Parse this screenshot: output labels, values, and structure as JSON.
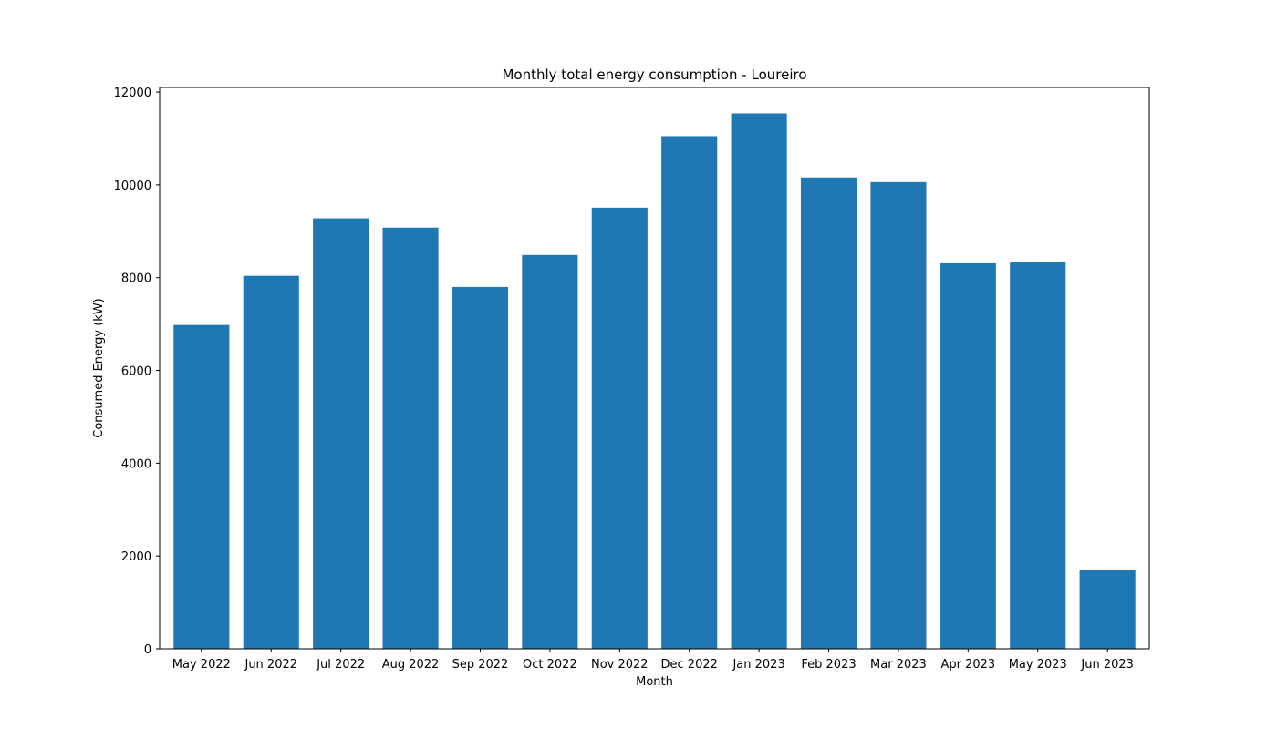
{
  "chart_data": {
    "type": "bar",
    "title": "Monthly total energy consumption - Loureiro",
    "xlabel": "Month",
    "ylabel": "Consumed Energy (kW)",
    "categories": [
      "May 2022",
      "Jun 2022",
      "Jul 2022",
      "Aug 2022",
      "Sep 2022",
      "Oct 2022",
      "Nov 2022",
      "Dec 2022",
      "Jan 2023",
      "Feb 2023",
      "Mar 2023",
      "Apr 2023",
      "May 2023",
      "Jun 2023"
    ],
    "values": [
      6980,
      8040,
      9280,
      9080,
      7800,
      8490,
      9510,
      11050,
      11540,
      10160,
      10060,
      8310,
      8330,
      1700
    ],
    "ylim": [
      0,
      12100
    ],
    "yticks": [
      0,
      2000,
      4000,
      6000,
      8000,
      10000,
      12000
    ],
    "grid": false,
    "bar_color": "#1f77b4"
  }
}
